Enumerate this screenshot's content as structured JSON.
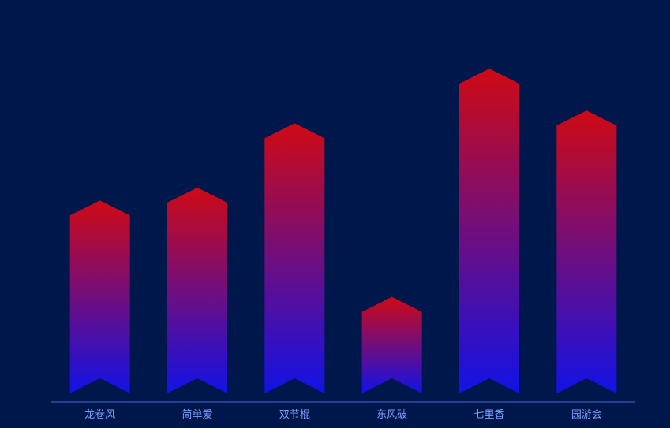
{
  "chart_data": {
    "type": "bar",
    "categories": [
      "龙卷风",
      "简单爱",
      "双节棍",
      "东风破",
      "七里香",
      "园游会"
    ],
    "values": [
      60,
      64,
      84,
      30,
      101,
      88
    ],
    "ylim": [
      0,
      115
    ],
    "grid": false,
    "legend": "none",
    "colors": {
      "background": "#00174c",
      "bar_top": "#cf0a14",
      "bar_bottom": "#1212e6",
      "axis_line": "#2f4fa8",
      "tick_label": "#7aa0ff"
    }
  }
}
